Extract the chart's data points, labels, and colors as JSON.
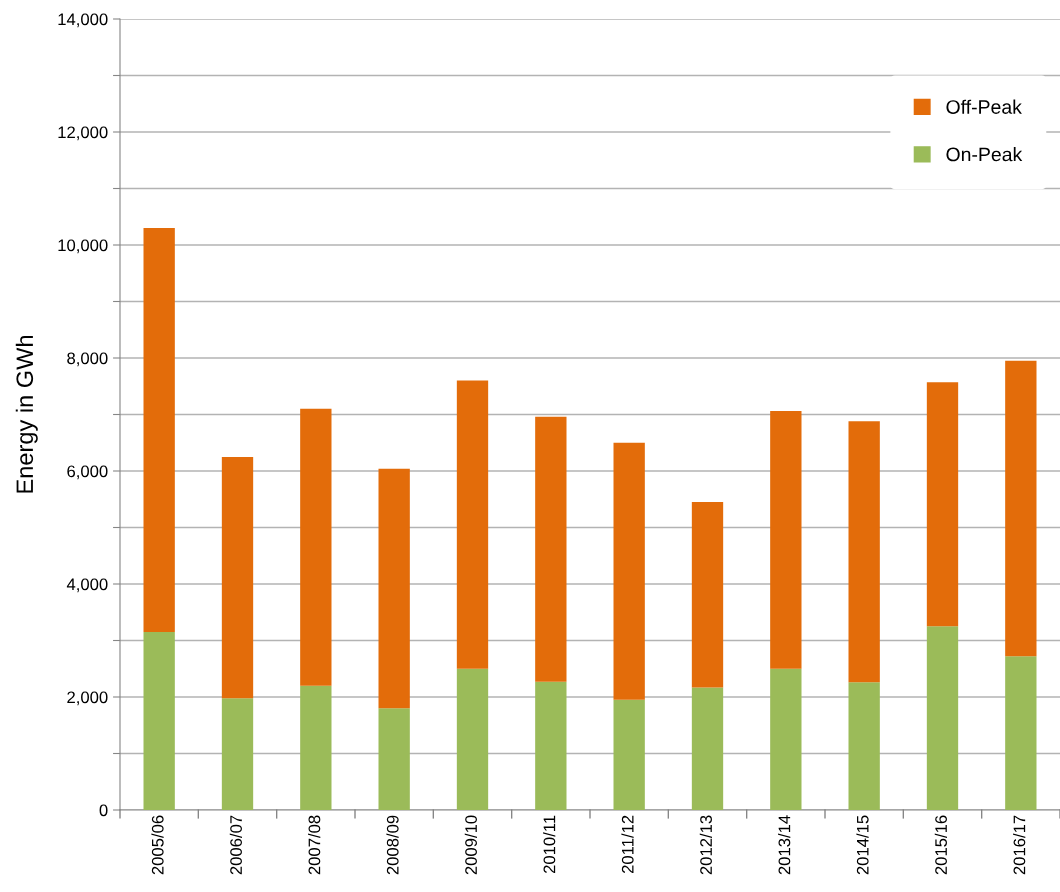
{
  "chart_data": {
    "type": "bar",
    "stacked": true,
    "ylabel": "Energy in GWh",
    "categories": [
      "2005/06",
      "2006/07",
      "2007/08",
      "2008/09",
      "2009/10",
      "2010/11",
      "2011/12",
      "2012/13",
      "2013/14",
      "2014/15",
      "2015/16",
      "2016/17"
    ],
    "series": [
      {
        "name": "On-Peak",
        "color": "#9bbb59",
        "values": [
          3150,
          1980,
          2200,
          1800,
          2500,
          2270,
          1950,
          2170,
          2500,
          2260,
          3250,
          2720
        ]
      },
      {
        "name": "Off-Peak",
        "color": "#e36c0a",
        "values": [
          7150,
          4270,
          4900,
          4240,
          5100,
          4690,
          4550,
          3280,
          4560,
          4620,
          4320,
          5230
        ]
      }
    ],
    "ylim": [
      0,
      14000
    ],
    "yticks": [
      {
        "value": 0,
        "label": "0"
      },
      {
        "value": 1000,
        "label": null
      },
      {
        "value": 2000,
        "label": "2,000"
      },
      {
        "value": 3000,
        "label": null
      },
      {
        "value": 4000,
        "label": "4,000"
      },
      {
        "value": 5000,
        "label": null
      },
      {
        "value": 6000,
        "label": "6,000"
      },
      {
        "value": 7000,
        "label": null
      },
      {
        "value": 8000,
        "label": "8,000"
      },
      {
        "value": 9000,
        "label": null
      },
      {
        "value": 10000,
        "label": "10,000"
      },
      {
        "value": 11000,
        "label": null
      },
      {
        "value": 12000,
        "label": "12,000"
      },
      {
        "value": 13000,
        "label": null
      },
      {
        "value": 14000,
        "label": "14,000"
      }
    ],
    "grid": "y",
    "legend": "top right"
  }
}
